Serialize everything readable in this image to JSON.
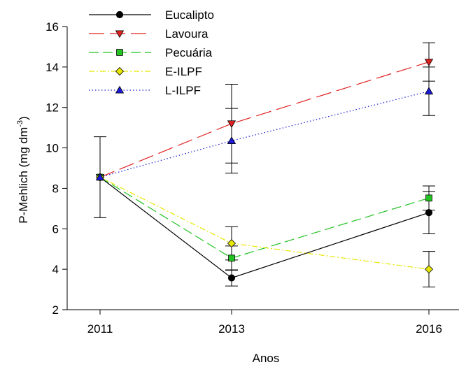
{
  "chart_data": {
    "type": "line",
    "xlabel": "Anos",
    "ylabel": "P-Mehlich (mg dm",
    "ylabel_sup": "-3",
    "ylabel_close": ")",
    "categories": [
      "2011",
      "2013",
      "2016"
    ],
    "x": [
      2011,
      2013,
      2016
    ],
    "xlim": [
      2010.5,
      2016.5
    ],
    "ylim": [
      2,
      16
    ],
    "yticks": [
      2,
      4,
      6,
      8,
      10,
      12,
      14,
      16
    ],
    "grid": false,
    "legend_position": "top-left",
    "series": [
      {
        "name": "Eucalipto",
        "values": [
          8.55,
          3.57,
          6.8
        ],
        "err": [
          2.0,
          0.4,
          1.05
        ],
        "color": "#000000",
        "marker": "circle",
        "dash": "solid"
      },
      {
        "name": "Lavoura",
        "values": [
          8.55,
          11.2,
          14.25
        ],
        "err": [
          0,
          1.95,
          0.95
        ],
        "color": "#e02020",
        "marker": "triangle-down",
        "dash": "long-dash"
      },
      {
        "name": "Pecuária",
        "values": [
          8.55,
          4.55,
          7.52
        ],
        "err": [
          0,
          0.6,
          0.6
        ],
        "color": "#22c322",
        "marker": "square",
        "dash": "dash"
      },
      {
        "name": "E-ILPF",
        "values": [
          8.55,
          5.28,
          4.0
        ],
        "err": [
          0,
          0.82,
          0.88
        ],
        "color": "#e6e600",
        "marker": "diamond",
        "dash": "dash-dot"
      },
      {
        "name": "L-ILPF",
        "values": [
          8.55,
          10.35,
          12.8
        ],
        "err": [
          0,
          1.6,
          1.2
        ],
        "color": "#1a1ad6",
        "marker": "triangle-up",
        "dash": "dotted"
      }
    ]
  }
}
